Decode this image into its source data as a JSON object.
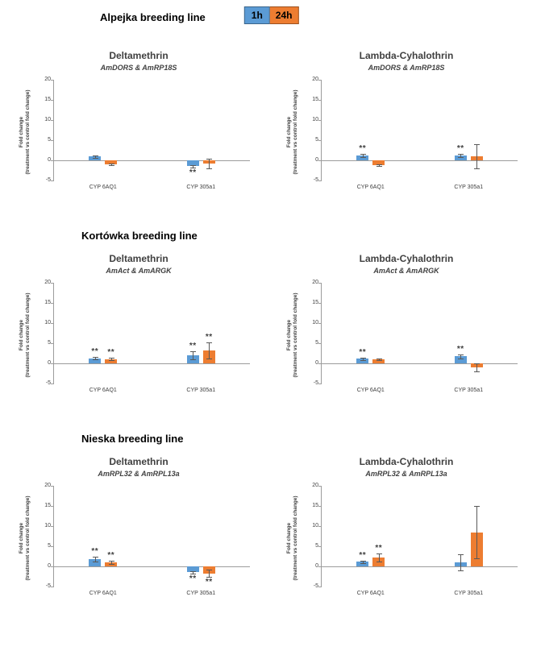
{
  "page": {
    "legend": [
      {
        "label": "1h",
        "color": "#5B9BD5"
      },
      {
        "label": "24h",
        "color": "#ED7D31"
      }
    ],
    "sig_marker": "**",
    "error_color": "#595959"
  },
  "sections": [
    {
      "title": "Alpejka breeding line"
    },
    {
      "title": "Kortówka breeding line"
    },
    {
      "title": "Nieska breeding line"
    }
  ],
  "chart_data": [
    {
      "type": "bar",
      "section": "Alpejka breeding line",
      "title": "Deltamethrin",
      "subtitle": "AmDORS & AmRP18S",
      "ylabel": [
        "Fold change",
        "(treatment vs control fold change)"
      ],
      "ylim": [
        -5,
        20
      ],
      "yticks": [
        -5,
        0,
        5,
        10,
        15,
        20
      ],
      "categories": [
        "CYP 6AQ1",
        "CYP 305a1"
      ],
      "legend_position": "none",
      "grid": false,
      "series": [
        {
          "name": "1h",
          "color": "#5B9BD5",
          "values": [
            1.0,
            -1.4
          ],
          "errors": [
            0.3,
            0.3
          ],
          "sig": [
            false,
            true
          ]
        },
        {
          "name": "24h",
          "color": "#ED7D31",
          "values": [
            -1.0,
            -0.8
          ],
          "errors": [
            0.15,
            1.2
          ],
          "sig": [
            false,
            false
          ]
        }
      ]
    },
    {
      "type": "bar",
      "section": "Alpejka breeding line",
      "title": "Lambda-Cyhalothrin",
      "subtitle": "AmDORS & AmRP18S",
      "ylabel": [
        "Fold change",
        "(treatment vs control fold change)"
      ],
      "ylim": [
        -5,
        20
      ],
      "yticks": [
        -5,
        0,
        5,
        10,
        15,
        20
      ],
      "categories": [
        "CYP 6AQ1",
        "CYP 305a1"
      ],
      "legend_position": "none",
      "grid": false,
      "series": [
        {
          "name": "1h",
          "color": "#5B9BD5",
          "values": [
            1.2,
            1.2
          ],
          "errors": [
            0.4,
            0.4
          ],
          "sig": [
            true,
            true
          ]
        },
        {
          "name": "24h",
          "color": "#ED7D31",
          "values": [
            -1.1,
            1.0
          ],
          "errors": [
            0.2,
            3.0
          ],
          "sig": [
            false,
            false
          ]
        }
      ]
    },
    {
      "type": "bar",
      "section": "Kortówka breeding line",
      "title": "Deltamethrin",
      "subtitle": "AmAct & AmARGK",
      "ylabel": [
        "Fold change",
        "(treatment vs control fold change)"
      ],
      "ylim": [
        -5,
        20
      ],
      "yticks": [
        -5,
        0,
        5,
        10,
        15,
        20
      ],
      "categories": [
        "CYP 6AQ1",
        "CYP 305a1"
      ],
      "legend_position": "none",
      "grid": false,
      "series": [
        {
          "name": "1h",
          "color": "#5B9BD5",
          "values": [
            1.3,
            2.0
          ],
          "errors": [
            0.3,
            1.0
          ],
          "sig": [
            true,
            true
          ]
        },
        {
          "name": "24h",
          "color": "#ED7D31",
          "values": [
            1.1,
            3.3
          ],
          "errors": [
            0.25,
            2.0
          ],
          "sig": [
            true,
            true
          ]
        }
      ]
    },
    {
      "type": "bar",
      "section": "Kortówka breeding line",
      "title": "Lambda-Cyhalothrin",
      "subtitle": "AmAct & AmARGK",
      "ylabel": [
        "Fold change",
        "(treatment vs control fold change)"
      ],
      "ylim": [
        -5,
        20
      ],
      "yticks": [
        -5,
        0,
        5,
        10,
        15,
        20
      ],
      "categories": [
        "CYP 6AQ1",
        "CYP 305a1"
      ],
      "legend_position": "none",
      "grid": false,
      "series": [
        {
          "name": "1h",
          "color": "#5B9BD5",
          "values": [
            1.2,
            1.8
          ],
          "errors": [
            0.3,
            0.5
          ],
          "sig": [
            true,
            true
          ]
        },
        {
          "name": "24h",
          "color": "#ED7D31",
          "values": [
            1.0,
            -1.0
          ],
          "errors": [
            0.2,
            1.0
          ],
          "sig": [
            false,
            false
          ]
        }
      ]
    },
    {
      "type": "bar",
      "section": "Nieska breeding line",
      "title": "Deltamethrin",
      "subtitle": "AmRPL32 & AmRPL13a",
      "ylabel": [
        "Fold change",
        "(treatment vs control fold change)"
      ],
      "ylim": [
        -5,
        20
      ],
      "yticks": [
        -5,
        0,
        5,
        10,
        15,
        20
      ],
      "categories": [
        "CYP 6AQ1",
        "CYP 305a1"
      ],
      "legend_position": "none",
      "grid": false,
      "series": [
        {
          "name": "1h",
          "color": "#5B9BD5",
          "values": [
            1.8,
            -1.4
          ],
          "errors": [
            0.6,
            0.3
          ],
          "sig": [
            true,
            true
          ]
        },
        {
          "name": "24h",
          "color": "#ED7D31",
          "values": [
            1.1,
            -1.7
          ],
          "errors": [
            0.4,
            0.9
          ],
          "sig": [
            true,
            true
          ]
        }
      ]
    },
    {
      "type": "bar",
      "section": "Nieska breeding line",
      "title": "Lambda-Cyhalothrin",
      "subtitle": "AmRPL32 & AmRPL13a",
      "ylabel": [
        "Fold change",
        "(treatment vs control fold change)"
      ],
      "ylim": [
        -5,
        20
      ],
      "yticks": [
        -5,
        0,
        5,
        10,
        15,
        20
      ],
      "categories": [
        "CYP 6AQ1",
        "CYP 305a1"
      ],
      "legend_position": "none",
      "grid": false,
      "series": [
        {
          "name": "1h",
          "color": "#5B9BD5",
          "values": [
            1.2,
            1.0
          ],
          "errors": [
            0.3,
            2.0
          ],
          "sig": [
            true,
            false
          ]
        },
        {
          "name": "24h",
          "color": "#ED7D31",
          "values": [
            2.2,
            8.5
          ],
          "errors": [
            1.0,
            6.5
          ],
          "sig": [
            true,
            false
          ]
        }
      ]
    }
  ]
}
